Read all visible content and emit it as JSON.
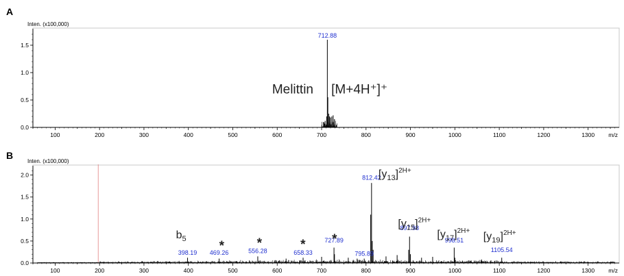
{
  "chart_data": [
    {
      "type": "line",
      "panel_label": "A",
      "ylabel": "Inten. (x100,000)",
      "xlabel": "m/z",
      "xlim": [
        50,
        1370
      ],
      "ylim": [
        0,
        1.75
      ],
      "xticks": [
        100,
        200,
        300,
        400,
        500,
        600,
        700,
        800,
        900,
        1000,
        1100,
        1200,
        1300
      ],
      "yticks": [
        "0.0",
        "0.5",
        "1.0",
        "1.5"
      ],
      "peak_labels": [
        {
          "x": 712.88,
          "y": 1.6,
          "text": "712.88"
        }
      ],
      "annotations": [
        {
          "text": "Melittin",
          "x": 635,
          "y": 0.62
        },
        {
          "text": "[M+4H⁺]⁺",
          "x": 785,
          "y": 0.62
        }
      ],
      "peaks": [
        [
          712.88,
          1.6
        ],
        [
          714.0,
          0.55
        ],
        [
          711.5,
          0.2
        ],
        [
          716.0,
          0.25
        ],
        [
          718.0,
          0.2
        ],
        [
          705.0,
          0.1
        ],
        [
          708.0,
          0.12
        ],
        [
          720.0,
          0.18
        ],
        [
          723.0,
          0.2
        ],
        [
          726.0,
          0.22
        ],
        [
          729.0,
          0.15
        ]
      ],
      "grid": false
    },
    {
      "type": "line",
      "panel_label": "B",
      "ylabel": "Inten. (x100,000)",
      "xlabel": "m/z",
      "xlim": [
        50,
        1370
      ],
      "ylim": [
        0,
        2.15
      ],
      "xticks": [
        100,
        200,
        300,
        400,
        500,
        600,
        700,
        800,
        900,
        1000,
        1100,
        1200,
        1300
      ],
      "yticks": [
        "0.0",
        "0.5",
        "1.0",
        "1.5",
        "2.0"
      ],
      "marker_line_x": 197,
      "peak_labels": [
        {
          "x": 398.19,
          "y": 0.14,
          "text": "398.19"
        },
        {
          "x": 469.26,
          "y": 0.14,
          "text": "469.26"
        },
        {
          "x": 556.28,
          "y": 0.18,
          "text": "556.28"
        },
        {
          "x": 658.33,
          "y": 0.14,
          "text": "658.33"
        },
        {
          "x": 727.89,
          "y": 0.42,
          "text": "727.89"
        },
        {
          "x": 795.89,
          "y": 0.12,
          "text": "795.89"
        },
        {
          "x": 812.42,
          "y": 1.85,
          "text": "812.42"
        },
        {
          "x": 897.98,
          "y": 0.7,
          "text": "897.98"
        },
        {
          "x": 998.51,
          "y": 0.42,
          "text": "998.51"
        },
        {
          "x": 1105.54,
          "y": 0.2,
          "text": "1105.54"
        }
      ],
      "ion_labels": [
        {
          "base": "[y",
          "sub": "13",
          "close": "]",
          "sup": "2H+",
          "x": 828,
          "y": 1.95
        },
        {
          "base": "[y",
          "sub": "15",
          "close": "]",
          "sup": "2H+",
          "x": 872,
          "y": 0.82
        },
        {
          "base": "[y",
          "sub": "17",
          "close": "]",
          "sup": "2H+",
          "x": 960,
          "y": 0.58
        },
        {
          "base": "[y",
          "sub": "19",
          "close": "]",
          "sup": "2H+",
          "x": 1064,
          "y": 0.53
        },
        {
          "base": "b",
          "sub": "5",
          "close": "",
          "sup": "",
          "x": 372,
          "y": 0.56
        }
      ],
      "asterisks": [
        {
          "text": "*",
          "x": 475,
          "y": 0.42
        },
        {
          "text": "*",
          "x": 560,
          "y": 0.48
        },
        {
          "text": "*",
          "x": 658,
          "y": 0.45
        },
        {
          "text": "*",
          "x": 729,
          "y": 0.58
        }
      ],
      "peaks": [
        [
          812.42,
          1.82
        ],
        [
          810.5,
          1.1
        ],
        [
          814.0,
          0.5
        ],
        [
          816.0,
          0.3
        ],
        [
          897.98,
          0.6
        ],
        [
          896.0,
          0.3
        ],
        [
          900.0,
          0.2
        ],
        [
          998.51,
          0.35
        ],
        [
          1000.0,
          0.12
        ],
        [
          727.89,
          0.35
        ],
        [
          729.0,
          0.2
        ],
        [
          795.89,
          0.1
        ],
        [
          658.33,
          0.12
        ],
        [
          556.28,
          0.15
        ],
        [
          469.26,
          0.1
        ],
        [
          398.19,
          0.12
        ],
        [
          870.0,
          0.18
        ],
        [
          950.0,
          0.14
        ],
        [
          925.0,
          0.12
        ],
        [
          1105.54,
          0.12
        ],
        [
          1060.0,
          0.08
        ],
        [
          620.0,
          0.1
        ],
        [
          700.0,
          0.14
        ],
        [
          760.0,
          0.12
        ],
        [
          780.0,
          0.1
        ],
        [
          845.0,
          0.15
        ]
      ],
      "grid": false
    }
  ]
}
